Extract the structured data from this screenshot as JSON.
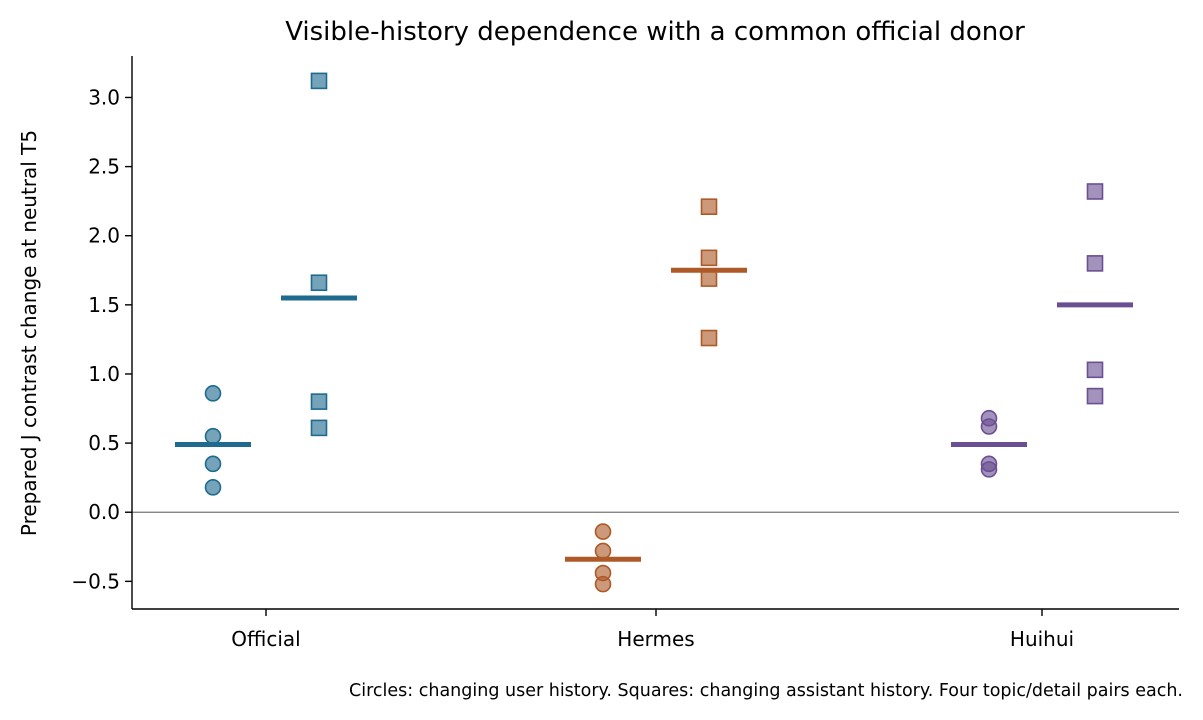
{
  "chart_data": {
    "type": "scatter",
    "title": "Visible-history dependence with a common official donor",
    "xlabel": "",
    "ylabel": "Prepared J contrast change at neutral T5",
    "footnote": "Circles: changing user history. Squares: changing assistant history. Four topic/detail pairs each.",
    "categories": [
      "Official",
      "Hermes",
      "Huihui"
    ],
    "ylim": [
      -0.7,
      3.3
    ],
    "yticks": [
      -0.5,
      0.0,
      0.5,
      1.0,
      1.5,
      2.0,
      2.5,
      3.0
    ],
    "ytick_labels": [
      "−0.5",
      "0.0",
      "0.5",
      "1.0",
      "1.5",
      "2.0",
      "2.5",
      "3.0"
    ],
    "zero_line": true,
    "grid": false,
    "colors": {
      "Official": "#1f6a8f",
      "Hermes": "#ad5a28",
      "Huihui": "#6b4f93"
    },
    "groups": [
      {
        "category": "Official",
        "user_history": {
          "marker": "circle",
          "values": [
            0.86,
            0.55,
            0.35,
            0.18
          ],
          "mean": 0.49
        },
        "assistant_history": {
          "marker": "square",
          "values": [
            3.12,
            1.66,
            0.8,
            0.61
          ],
          "mean": 1.55
        }
      },
      {
        "category": "Hermes",
        "user_history": {
          "marker": "circle",
          "values": [
            -0.14,
            -0.28,
            -0.44,
            -0.52
          ],
          "mean": -0.34
        },
        "assistant_history": {
          "marker": "square",
          "values": [
            2.21,
            1.84,
            1.69,
            1.26
          ],
          "mean": 1.75
        }
      },
      {
        "category": "Huihui",
        "user_history": {
          "marker": "circle",
          "values": [
            0.68,
            0.62,
            0.35,
            0.31
          ],
          "mean": 0.49
        },
        "assistant_history": {
          "marker": "square",
          "values": [
            2.32,
            1.8,
            1.03,
            0.84
          ],
          "mean": 1.5
        }
      }
    ]
  }
}
